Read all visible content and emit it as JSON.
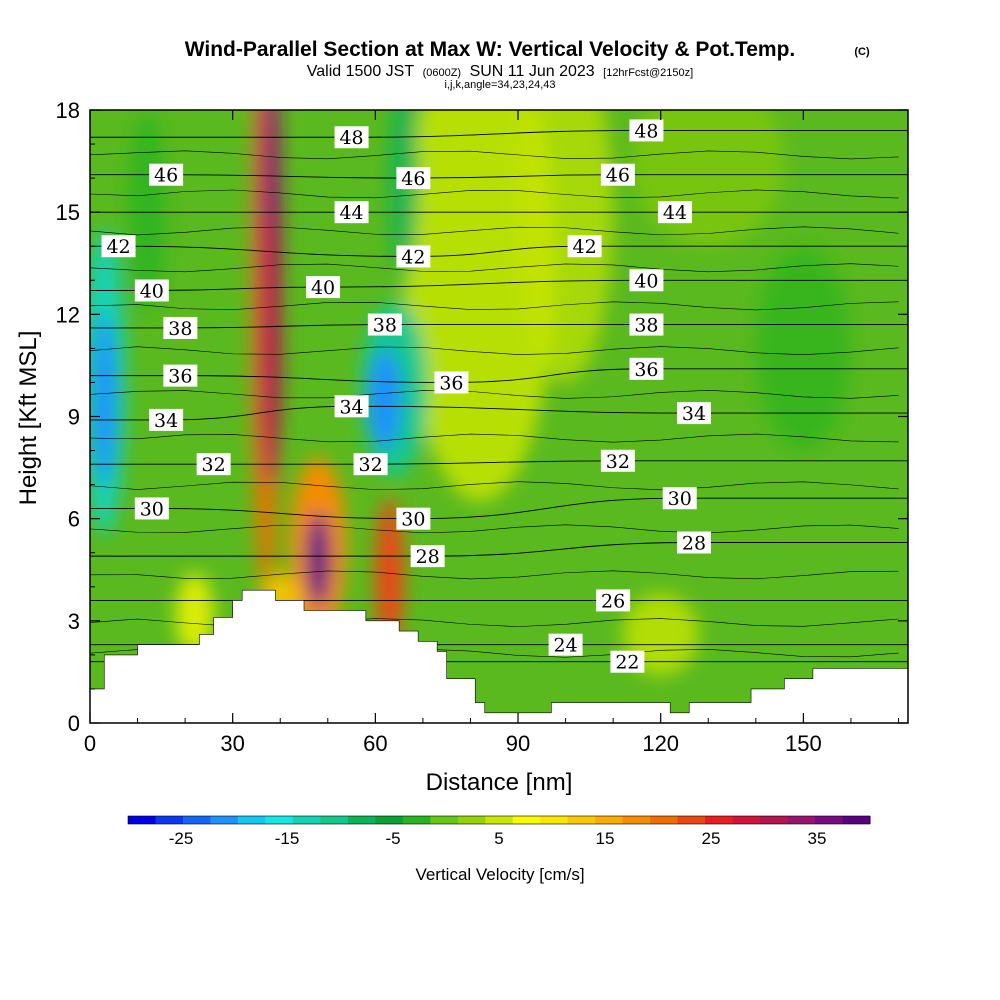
{
  "title": {
    "main": "Wind-Parallel Section at Max W: Vertical Velocity & Pot.Temp.",
    "copyright": "(C)",
    "valid_prefix": "Valid 1500 JST",
    "valid_utc": "(0600Z)",
    "valid_date": "SUN 11 Jun 2023",
    "forecast": "[12hrFcst@2150z]",
    "indices": "i,j,k,angle=34,23,24,43"
  },
  "chart_data": {
    "type": "heatmap",
    "xlabel": "Distance [nm]",
    "ylabel": "Height [Kft MSL]",
    "xlim": [
      0,
      172
    ],
    "ylim": [
      0,
      18
    ],
    "x_ticks": [
      0,
      30,
      60,
      90,
      120,
      150
    ],
    "y_ticks": [
      0,
      3,
      6,
      9,
      12,
      15,
      18
    ],
    "colorbar": {
      "label": "Vertical Velocity [cm/s]",
      "ticks": [
        "-25",
        "-15",
        "-5",
        "5",
        "15",
        "25",
        "35"
      ],
      "min": -30,
      "max": 40,
      "colors": [
        "#0000e6",
        "#0a37f0",
        "#1464f5",
        "#1e91fa",
        "#14c8f5",
        "#14e6e6",
        "#14d2b4",
        "#14c88c",
        "#0ab45a",
        "#0aa032",
        "#28b41e",
        "#64c814",
        "#96d20a",
        "#c8e600",
        "#fafa00",
        "#fae600",
        "#fac800",
        "#faaa00",
        "#f58c00",
        "#f06e00",
        "#eb4614",
        "#e61e1e",
        "#d2143c",
        "#b41450",
        "#96146e",
        "#780a82",
        "#5a0082"
      ]
    },
    "field_features": [
      {
        "x": 37,
        "y": 15,
        "w": 40,
        "desc": "updraft column"
      },
      {
        "x": 48,
        "y": 5,
        "w": 38,
        "desc": "updraft core"
      },
      {
        "x": 63,
        "y": 4.5,
        "w": 26
      },
      {
        "x": 3,
        "y": 9.5,
        "w": -20,
        "desc": "downdraft"
      },
      {
        "x": 62,
        "y": 9.5,
        "w": -18,
        "desc": "downdraft"
      },
      {
        "x": 67,
        "y": 16,
        "w": -12
      },
      {
        "x": 82,
        "y": 14,
        "w": 10
      },
      {
        "x": 120,
        "y": 2.5,
        "w": 6
      }
    ],
    "theta_contours": [
      {
        "value": "22",
        "label_x": 113,
        "label_y": 1.8
      },
      {
        "value": "24",
        "label_x": 100,
        "label_y": 2.3
      },
      {
        "value": "26",
        "label_x": 110,
        "label_y": 3.6
      },
      {
        "value": "28",
        "label_x": 71,
        "label_y": 4.9
      },
      {
        "value": "28",
        "label_x": 127,
        "label_y": 5.3
      },
      {
        "value": "30",
        "label_x": 13,
        "label_y": 6.3
      },
      {
        "value": "30",
        "label_x": 68,
        "label_y": 6.0
      },
      {
        "value": "30",
        "label_x": 124,
        "label_y": 6.6
      },
      {
        "value": "32",
        "label_x": 26,
        "label_y": 7.6
      },
      {
        "value": "32",
        "label_x": 59,
        "label_y": 7.6
      },
      {
        "value": "32",
        "label_x": 111,
        "label_y": 7.7
      },
      {
        "value": "34",
        "label_x": 16,
        "label_y": 8.9
      },
      {
        "value": "34",
        "label_x": 55,
        "label_y": 9.3
      },
      {
        "value": "34",
        "label_x": 127,
        "label_y": 9.1
      },
      {
        "value": "36",
        "label_x": 19,
        "label_y": 10.2
      },
      {
        "value": "36",
        "label_x": 76,
        "label_y": 10.0
      },
      {
        "value": "36",
        "label_x": 117,
        "label_y": 10.4
      },
      {
        "value": "38",
        "label_x": 19,
        "label_y": 11.6
      },
      {
        "value": "38",
        "label_x": 62,
        "label_y": 11.7
      },
      {
        "value": "38",
        "label_x": 117,
        "label_y": 11.7
      },
      {
        "value": "40",
        "label_x": 13,
        "label_y": 12.7
      },
      {
        "value": "40",
        "label_x": 49,
        "label_y": 12.8
      },
      {
        "value": "40",
        "label_x": 117,
        "label_y": 13.0
      },
      {
        "value": "42",
        "label_x": 6,
        "label_y": 14.0
      },
      {
        "value": "42",
        "label_x": 68,
        "label_y": 13.7
      },
      {
        "value": "42",
        "label_x": 104,
        "label_y": 14.0
      },
      {
        "value": "44",
        "label_x": 55,
        "label_y": 15.0
      },
      {
        "value": "44",
        "label_x": 123,
        "label_y": 15.0
      },
      {
        "value": "46",
        "label_x": 16,
        "label_y": 16.1
      },
      {
        "value": "46",
        "label_x": 68,
        "label_y": 16.0
      },
      {
        "value": "46",
        "label_x": 111,
        "label_y": 16.1
      },
      {
        "value": "48",
        "label_x": 55,
        "label_y": 17.2
      },
      {
        "value": "48",
        "label_x": 117,
        "label_y": 17.4
      }
    ],
    "terrain": [
      [
        0,
        1.0
      ],
      [
        3,
        1.0
      ],
      [
        3,
        2.0
      ],
      [
        10,
        2.0
      ],
      [
        10,
        2.3
      ],
      [
        23,
        2.3
      ],
      [
        23,
        2.6
      ],
      [
        26,
        2.6
      ],
      [
        26,
        3.1
      ],
      [
        30,
        3.1
      ],
      [
        30,
        3.6
      ],
      [
        32,
        3.6
      ],
      [
        32,
        3.9
      ],
      [
        39,
        3.9
      ],
      [
        39,
        3.6
      ],
      [
        45,
        3.6
      ],
      [
        45,
        3.3
      ],
      [
        58,
        3.3
      ],
      [
        58,
        3.0
      ],
      [
        65,
        3.0
      ],
      [
        65,
        2.7
      ],
      [
        69,
        2.7
      ],
      [
        69,
        2.4
      ],
      [
        73,
        2.4
      ],
      [
        73,
        2.1
      ],
      [
        75,
        2.1
      ],
      [
        75,
        1.3
      ],
      [
        81,
        1.3
      ],
      [
        81,
        0.6
      ],
      [
        83,
        0.6
      ],
      [
        83,
        0.3
      ],
      [
        97,
        0.3
      ],
      [
        97,
        0.6
      ],
      [
        122,
        0.6
      ],
      [
        122,
        0.3
      ],
      [
        126,
        0.3
      ],
      [
        126,
        0.6
      ],
      [
        139,
        0.6
      ],
      [
        139,
        1.0
      ],
      [
        146,
        1.0
      ],
      [
        146,
        1.3
      ],
      [
        152,
        1.3
      ],
      [
        152,
        1.6
      ],
      [
        172,
        1.6
      ]
    ]
  }
}
